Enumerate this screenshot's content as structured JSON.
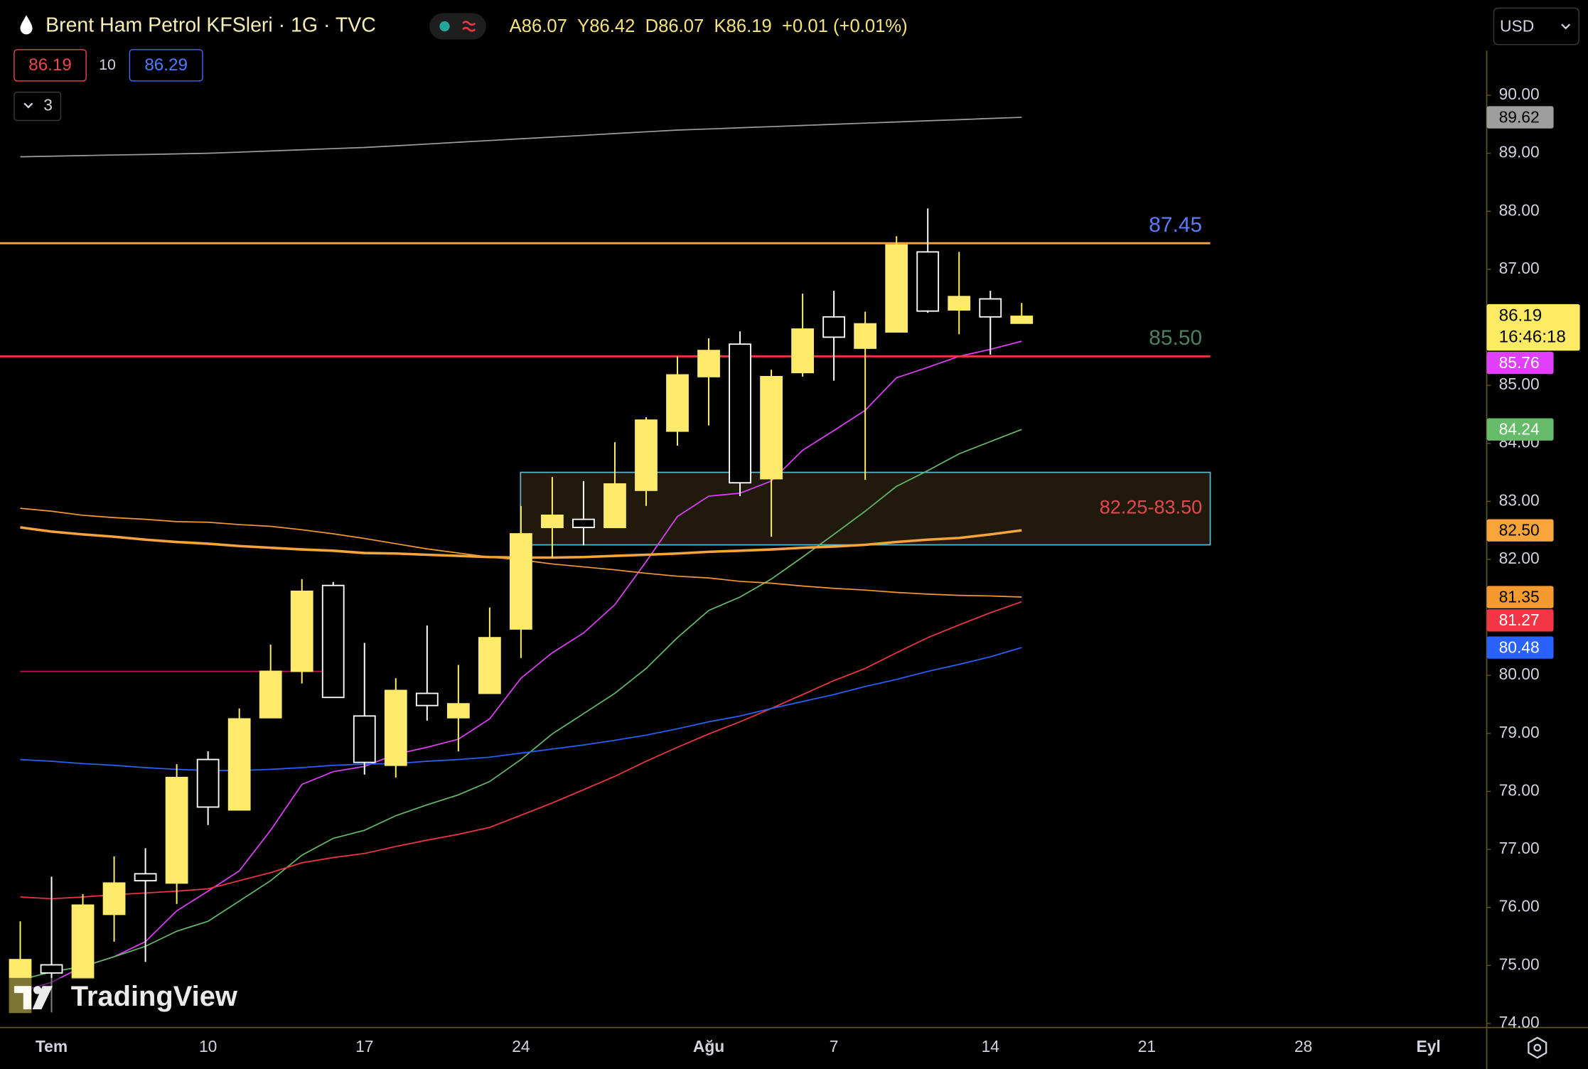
{
  "chart_data": {
    "type": "candlestick",
    "title": "Brent Ham Petrol KFSleri · 1G · TVC",
    "ohlc_legend": [
      "A86.07",
      "Y86.42",
      "D86.07",
      "K86.19",
      "+0.01 (+0.01%)"
    ],
    "quote": {
      "sell": 86.19,
      "spread": 10,
      "buy": 86.29
    },
    "indicator_count": 3,
    "currency": "USD",
    "watermark": "TradingView",
    "countdown": "16:46:18",
    "up_color": "#ffeb6b",
    "down_color": "#ffffff",
    "categories": [
      null,
      "Tem",
      null,
      null,
      null,
      null,
      "10",
      null,
      null,
      null,
      null,
      "17",
      null,
      null,
      null,
      null,
      "24",
      null,
      null,
      null,
      null,
      null,
      "Ağu",
      null,
      null,
      null,
      "7",
      null,
      null,
      null,
      null,
      "14",
      null,
      null,
      null,
      null,
      "21",
      null,
      null,
      null,
      null,
      "28",
      null,
      null,
      null,
      "Eyl"
    ],
    "open": [
      74.19,
      75.01,
      74.78,
      75.88,
      76.58,
      76.42,
      78.55,
      77.68,
      79.27,
      80.07,
      81.55,
      79.3,
      78.45,
      79.69,
      79.27,
      79.69,
      80.8,
      82.55,
      82.69,
      82.55,
      83.19,
      84.21,
      85.15,
      85.71,
      83.39,
      85.22,
      86.18,
      85.64,
      85.92,
      87.3,
      86.3,
      86.49,
      86.07,
      null,
      null,
      null,
      null,
      null,
      null,
      null,
      null,
      null,
      null,
      null,
      null,
      null
    ],
    "high": [
      75.76,
      76.53,
      76.23,
      76.88,
      77.02,
      78.47,
      78.69,
      79.43,
      80.53,
      81.66,
      81.61,
      80.56,
      79.95,
      80.86,
      80.18,
      81.17,
      82.92,
      83.42,
      83.35,
      84.02,
      84.45,
      85.5,
      85.81,
      85.93,
      85.27,
      86.58,
      86.63,
      86.27,
      87.57,
      88.05,
      87.3,
      86.63,
      86.42,
      null,
      null,
      null,
      null,
      null,
      null,
      null,
      null,
      null,
      null,
      null,
      null,
      null
    ],
    "low": [
      74.19,
      74.19,
      74.78,
      75.41,
      75.06,
      76.06,
      77.42,
      77.68,
      79.27,
      79.86,
      79.62,
      78.29,
      78.24,
      79.22,
      78.69,
      79.69,
      80.3,
      82.03,
      82.24,
      82.55,
      82.92,
      83.96,
      84.31,
      83.09,
      82.39,
      85.15,
      85.08,
      83.37,
      85.92,
      86.25,
      85.88,
      85.53,
      86.07,
      null,
      null,
      null,
      null,
      null,
      null,
      null,
      null,
      null,
      null,
      null,
      null,
      null
    ],
    "close": [
      75.1,
      74.87,
      76.04,
      76.42,
      76.46,
      78.24,
      77.73,
      79.25,
      80.07,
      81.45,
      79.62,
      78.5,
      79.74,
      79.48,
      79.51,
      80.65,
      82.44,
      82.76,
      82.55,
      83.3,
      84.4,
      85.18,
      85.6,
      83.32,
      85.15,
      85.97,
      85.83,
      86.06,
      87.42,
      86.28,
      86.53,
      86.18,
      86.19,
      null,
      null,
      null,
      null,
      null,
      null,
      null,
      null,
      null,
      null,
      null,
      null,
      null
    ],
    "series": [
      {
        "color": "#9e9e9e",
        "values": [
          88.94,
          88.95,
          88.96,
          88.97,
          88.98,
          88.99,
          89.0,
          89.02,
          89.04,
          89.06,
          89.08,
          89.1,
          89.13,
          89.16,
          89.19,
          89.22,
          89.25,
          89.28,
          89.31,
          89.34,
          89.37,
          89.4,
          89.42,
          89.44,
          89.46,
          89.48,
          89.5,
          89.52,
          89.54,
          89.56,
          89.58,
          89.6,
          89.62,
          null,
          null,
          null,
          null,
          null,
          null,
          null,
          null,
          null,
          null,
          null,
          null,
          null
        ]
      },
      {
        "color": "#e040fb",
        "values": [
          74.54,
          74.71,
          74.98,
          75.15,
          75.41,
          75.94,
          76.28,
          76.63,
          77.33,
          78.12,
          78.34,
          78.43,
          78.64,
          78.76,
          78.9,
          79.25,
          79.95,
          80.39,
          80.73,
          81.22,
          81.96,
          82.74,
          83.09,
          83.14,
          83.35,
          83.88,
          84.22,
          84.57,
          85.13,
          85.31,
          85.5,
          85.62,
          85.76,
          null,
          null,
          null,
          null,
          null,
          null,
          null,
          null,
          null,
          null,
          null,
          null,
          null
        ]
      },
      {
        "color": "#66bb6a",
        "values": [
          74.75,
          74.89,
          74.98,
          75.15,
          75.33,
          75.59,
          75.76,
          76.11,
          76.46,
          76.9,
          77.19,
          77.33,
          77.58,
          77.77,
          77.94,
          78.17,
          78.55,
          78.99,
          79.34,
          79.69,
          80.12,
          80.65,
          81.12,
          81.35,
          81.66,
          82.04,
          82.43,
          82.83,
          83.26,
          83.53,
          83.82,
          84.03,
          84.24,
          null,
          null,
          null,
          null,
          null,
          null,
          null,
          null,
          null,
          null,
          null,
          null,
          null
        ]
      },
      {
        "color": "#f7a43b",
        "line_width": 2.5,
        "values": [
          82.55,
          82.48,
          82.43,
          82.39,
          82.34,
          82.3,
          82.27,
          82.23,
          82.2,
          82.17,
          82.15,
          82.11,
          82.1,
          82.08,
          82.06,
          82.04,
          82.03,
          82.03,
          82.04,
          82.06,
          82.08,
          82.1,
          82.13,
          82.15,
          82.17,
          82.2,
          82.22,
          82.25,
          82.3,
          82.34,
          82.37,
          82.43,
          82.5,
          null,
          null,
          null,
          null,
          null,
          null,
          null,
          null,
          null,
          null,
          null,
          null,
          null
        ],
        "value_labels": [
          null,
          null,
          null,
          null,
          null,
          null,
          null,
          null,
          null,
          null,
          null,
          null,
          null,
          null,
          null,
          null,
          null,
          null,
          null,
          null,
          null,
          null,
          null,
          null,
          null,
          null,
          null,
          null,
          null,
          null,
          null,
          null,
          "82.50",
          null,
          null,
          null,
          null,
          null,
          null,
          null,
          null,
          null,
          null,
          null,
          null,
          null
        ]
      },
      {
        "color": "#f59a2e",
        "values": [
          82.88,
          82.83,
          82.76,
          82.72,
          82.69,
          82.65,
          82.64,
          82.6,
          82.57,
          82.51,
          82.44,
          82.36,
          82.27,
          82.18,
          82.11,
          82.04,
          81.99,
          81.92,
          81.87,
          81.82,
          81.76,
          81.71,
          81.68,
          81.62,
          81.59,
          81.54,
          81.5,
          81.47,
          81.43,
          81.4,
          81.38,
          81.37,
          81.35,
          null,
          null,
          null,
          null,
          null,
          null,
          null,
          null,
          null,
          null,
          null,
          null,
          null
        ]
      },
      {
        "color": "#f23645",
        "values": [
          76.18,
          76.15,
          76.18,
          76.22,
          76.25,
          76.28,
          76.32,
          76.46,
          76.6,
          76.77,
          76.86,
          76.93,
          77.05,
          77.16,
          77.26,
          77.38,
          77.59,
          77.8,
          78.03,
          78.26,
          78.52,
          78.76,
          78.99,
          79.2,
          79.43,
          79.67,
          79.91,
          80.12,
          80.39,
          80.65,
          80.87,
          81.08,
          81.27,
          null,
          null,
          null,
          null,
          null,
          null,
          null,
          null,
          null,
          null,
          null,
          null,
          null
        ]
      },
      {
        "color": "#2962ff",
        "values": [
          78.55,
          78.52,
          78.48,
          78.45,
          78.41,
          78.38,
          78.36,
          78.36,
          78.38,
          78.41,
          78.45,
          78.47,
          78.48,
          78.52,
          78.55,
          78.59,
          78.66,
          78.73,
          78.8,
          78.88,
          78.97,
          79.08,
          79.2,
          79.3,
          79.43,
          79.55,
          79.67,
          79.81,
          79.93,
          80.07,
          80.19,
          80.32,
          80.48,
          null,
          null,
          null,
          null,
          null,
          null,
          null,
          null,
          null,
          null,
          null,
          null,
          null
        ]
      },
      {
        "color": "#c2185b",
        "values": [
          80.07,
          80.07,
          80.07,
          80.07,
          80.07,
          80.07,
          80.07,
          80.07,
          80.07,
          80.07,
          80.07,
          null,
          null,
          null,
          null,
          null,
          null,
          null,
          null,
          null,
          null,
          null,
          null,
          null,
          null,
          null,
          null,
          null,
          null,
          null,
          null,
          null,
          null,
          null,
          null,
          null,
          null,
          null,
          null,
          null,
          null,
          null,
          null,
          null,
          null,
          null
        ]
      }
    ],
    "levels": [
      {
        "value": 87.45,
        "color": "#f7a43b",
        "label_color": "#5b7cfa"
      },
      {
        "value": 85.5,
        "value_label": "85.50",
        "color": "#f23645",
        "label_color": "#4f7f63"
      }
    ],
    "zone": {
      "low": 82.25,
      "high": 83.5,
      "label": "82.25-83.50",
      "fill": "#1f1a0c",
      "border": "#5fb8d6",
      "label_color": "#e5484d"
    },
    "ylim": [
      73.93,
      90.77
    ],
    "yticks": [
      {
        "value": 74,
        "label": "74.00"
      },
      {
        "value": 75,
        "label": "75.00"
      },
      {
        "value": 76,
        "label": "76.00"
      },
      {
        "value": 77,
        "label": "77.00"
      },
      {
        "value": 78,
        "label": "78.00"
      },
      {
        "value": 79,
        "label": "79.00"
      },
      {
        "value": 80,
        "label": "80.00"
      },
      {
        "value": 81,
        "label": "81.00"
      },
      {
        "value": 82,
        "label": "82.00"
      },
      {
        "value": 83,
        "label": "83.00"
      },
      {
        "value": 84,
        "label": "84.00"
      },
      {
        "value": 85,
        "label": "85.00"
      },
      {
        "value": 86,
        "label": "86.00"
      },
      {
        "value": 87,
        "label": "87.00"
      },
      {
        "value": 88,
        "label": "88.00"
      },
      {
        "value": 89,
        "label": "89.00"
      },
      {
        "value": 90,
        "label": "90.00"
      }
    ],
    "grid": false
  }
}
